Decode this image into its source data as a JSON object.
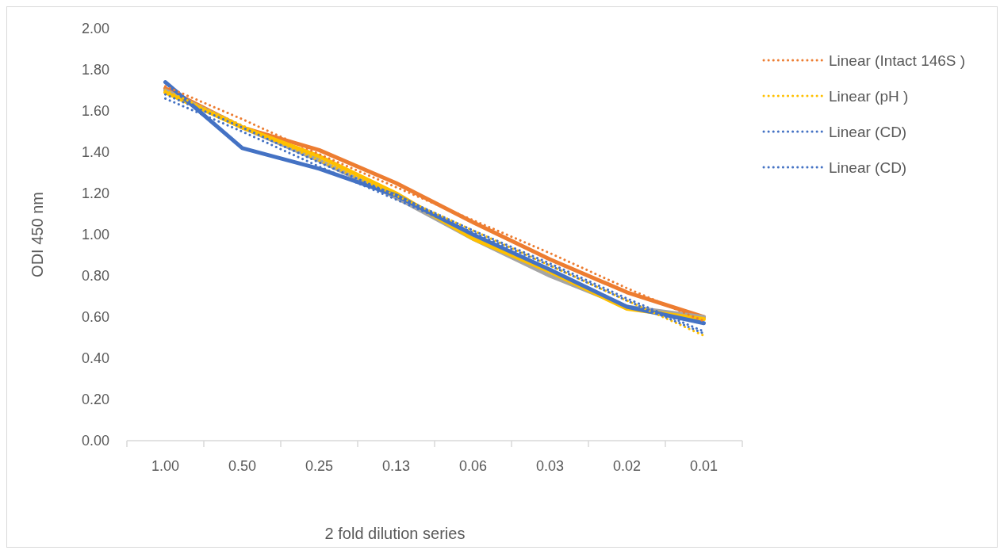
{
  "chart_data": {
    "type": "line",
    "xlabel": "2 fold dilution series",
    "ylabel": "ODI 450 nm",
    "categories": [
      "1.00",
      "0.50",
      "0.25",
      "0.13",
      "0.06",
      "0.03",
      "0.02",
      "0.01"
    ],
    "ylim": [
      0,
      2
    ],
    "yticks": [
      {
        "value": 0,
        "label": "0.00"
      },
      {
        "value": 0.2,
        "label": "0.20"
      },
      {
        "value": 0.4,
        "label": "0.40"
      },
      {
        "value": 0.6,
        "label": "0.60"
      },
      {
        "value": 0.8,
        "label": "0.80"
      },
      {
        "value": 1,
        "label": "1.00"
      },
      {
        "value": 1.2,
        "label": "1.20"
      },
      {
        "value": 1.4,
        "label": "1.40"
      },
      {
        "value": 1.6,
        "label": "1.60"
      },
      {
        "value": 1.8,
        "label": "1.80"
      },
      {
        "value": 2,
        "label": "2.00"
      }
    ],
    "grid": false,
    "legend": "right",
    "marker": "none",
    "series": [
      {
        "color": "#ed7d31",
        "line_style": "solid",
        "values": [
          1.71,
          1.52,
          1.41,
          1.25,
          1.06,
          0.88,
          0.72,
          0.6
        ]
      },
      {
        "color": "#a5a5a5",
        "line_style": "solid",
        "values": [
          1.7,
          1.52,
          1.36,
          1.18,
          0.98,
          0.8,
          0.65,
          0.6
        ]
      },
      {
        "color": "#ffc000",
        "line_style": "solid",
        "values": [
          1.69,
          1.52,
          1.38,
          1.2,
          0.98,
          0.82,
          0.64,
          0.59
        ]
      },
      {
        "color": "#4472c4",
        "line_style": "solid",
        "values": [
          1.74,
          1.42,
          1.32,
          1.19,
          1.0,
          0.83,
          0.65,
          0.57
        ]
      },
      {
        "name": "Linear (Intact 146S )",
        "color": "#ed7d31",
        "line_style": "dotted",
        "values": [
          1.72,
          1.56,
          1.39,
          1.23,
          1.07,
          0.91,
          0.74,
          0.58
        ]
      },
      {
        "name": "Linear (pH )",
        "color": "#ffc000",
        "line_style": "dotted",
        "values": [
          1.7,
          1.53,
          1.36,
          1.19,
          1.02,
          0.85,
          0.68,
          0.51
        ]
      },
      {
        "name": "Linear (CD)",
        "color": "#4472c4",
        "line_style": "dotted",
        "values": [
          1.66,
          1.5,
          1.33,
          1.17,
          1.01,
          0.85,
          0.68,
          0.52
        ]
      },
      {
        "name": "Linear (CD)",
        "color": "#4472c4",
        "line_style": "dotted",
        "values": [
          1.68,
          1.52,
          1.35,
          1.19,
          1.02,
          0.86,
          0.69,
          0.53
        ]
      }
    ]
  }
}
